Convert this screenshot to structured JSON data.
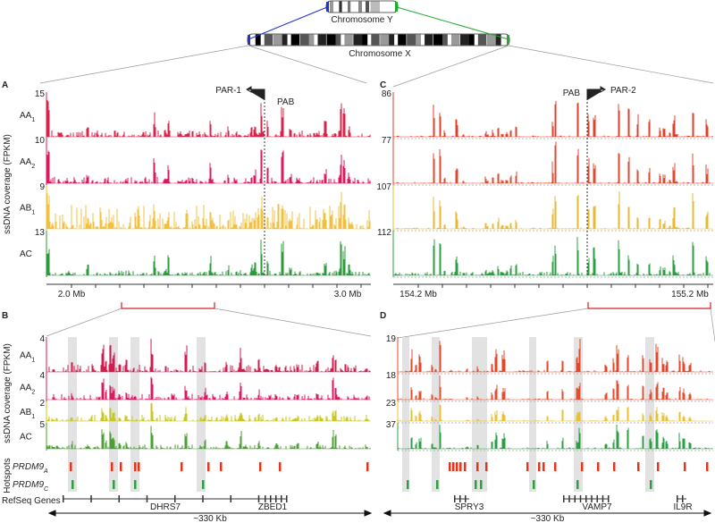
{
  "ideograms": {
    "chrY": "Chromosome Y",
    "chrX": "Chromosome X"
  },
  "y_axis_label": "ssDNA  coverage (FPKM)",
  "lower_labels": {
    "hotspots": "Hotspots",
    "genes": "RefSeq Genes"
  },
  "panels": [
    {
      "letter": "A",
      "tracks": [
        {
          "name": {
            "base": "AA",
            "sub": "1"
          },
          "max": 15
        },
        {
          "name": {
            "base": "AA",
            "sub": "2"
          },
          "max": 10
        },
        {
          "name": {
            "base": "AB",
            "sub": "1"
          },
          "max": 9
        },
        {
          "name": {
            "base": "AC",
            "sub": ""
          },
          "max": 13
        }
      ],
      "axis_labels": [
        "2.0 Mb",
        "3.0 Mb"
      ],
      "boundary": "PAB",
      "region": "PAR-1"
    },
    {
      "letter": "C",
      "tracks": [
        {
          "max": 86
        },
        {
          "max": 77
        },
        {
          "max": 107
        },
        {
          "max": 112
        }
      ],
      "axis_labels": [
        "154.2 Mb",
        "155.2 Mb"
      ],
      "boundary": "PAB",
      "region": "PAR-2"
    },
    {
      "letter": "B",
      "tracks": [
        {
          "name": {
            "base": "AA",
            "sub": "1"
          },
          "max": 4
        },
        {
          "name": {
            "base": "AA",
            "sub": "2"
          },
          "max": 4
        },
        {
          "name": {
            "base": "AB",
            "sub": "1"
          },
          "max": 2
        },
        {
          "name": {
            "base": "AC",
            "sub": ""
          },
          "max": 5
        }
      ],
      "hotspot_rows": [
        {
          "base": "PRDM9",
          "sub": "A"
        },
        {
          "base": "PRDM9",
          "sub": "C"
        }
      ],
      "genes": [
        "DHRS7",
        "ZBED1"
      ],
      "scale": "~330 Kb"
    },
    {
      "letter": "D",
      "tracks": [
        {
          "max": 19
        },
        {
          "max": 18
        },
        {
          "max": 23
        },
        {
          "max": 37
        }
      ],
      "genes": [
        "SPRY3",
        "VAMP7",
        "IL9R"
      ],
      "scale": "~330 Kb"
    }
  ]
}
